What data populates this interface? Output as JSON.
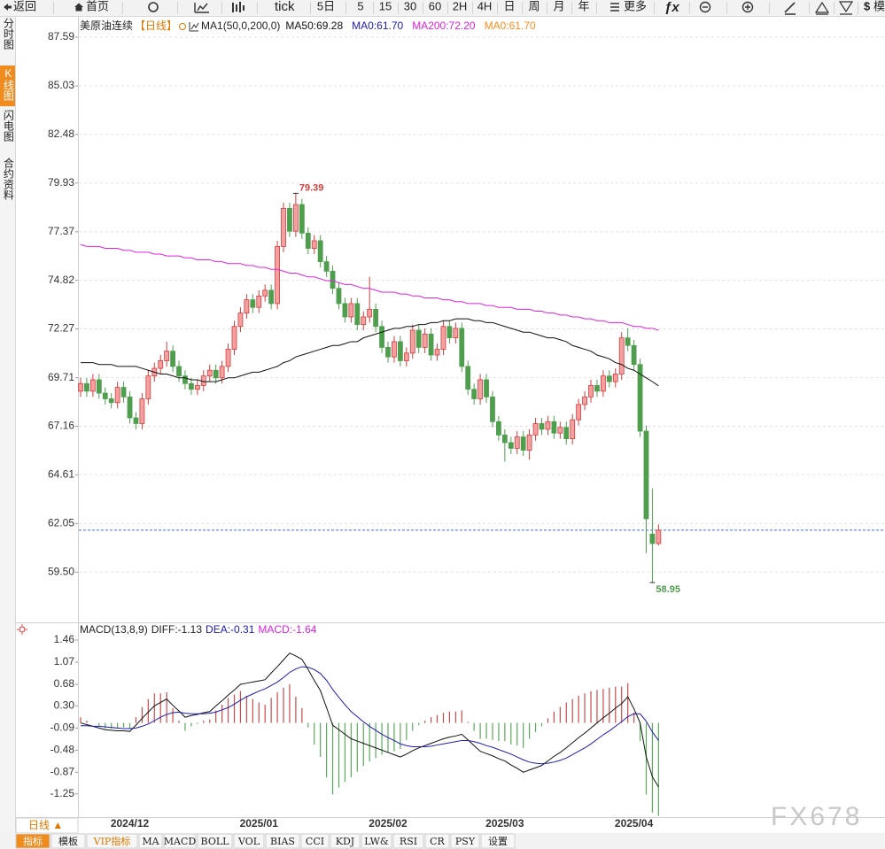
{
  "toolbar": {
    "back": "返回",
    "home": "首页",
    "tick": "tick",
    "periods": [
      "5日",
      "5",
      "15",
      "30",
      "60",
      "2H",
      "4H",
      "日",
      "周",
      "月",
      "年"
    ],
    "more": "更多",
    "fx": "ƒx",
    "currency": "$",
    "right": "模"
  },
  "sidebar": [
    "分时图",
    "K线图",
    "闪电图",
    "合约资料"
  ],
  "period_label": "日线 ▲",
  "tabs": [
    "指标",
    "模板",
    "VIP指标",
    "MA",
    "MACD",
    "BOLL",
    "VOL",
    "BIAS",
    "CCI",
    "KDJ",
    "LW&",
    "RSI",
    "CR",
    "PSY",
    "设置"
  ],
  "watermark": "FX678",
  "chart_data": [
    {
      "type": "candlestick",
      "title": "美原油连续",
      "subtitle": "【日线】",
      "indicator": "MA1(50,0,200,0)",
      "categories": [
        null,
        null,
        null,
        null,
        null,
        null,
        null,
        null,
        "2024/12",
        null,
        null,
        null,
        null,
        null,
        null,
        null,
        null,
        null,
        null,
        null,
        null,
        null,
        null,
        null,
        null,
        null,
        null,
        null,
        null,
        "2025/01",
        null,
        null,
        null,
        null,
        null,
        null,
        null,
        null,
        null,
        null,
        null,
        null,
        null,
        null,
        null,
        null,
        null,
        null,
        null,
        null,
        "2025/02",
        null,
        null,
        null,
        null,
        null,
        null,
        null,
        null,
        null,
        null,
        null,
        null,
        null,
        null,
        null,
        null,
        null,
        null,
        "2025/03",
        null,
        null,
        null,
        null,
        null,
        null,
        null,
        null,
        null,
        null,
        null,
        null,
        null,
        null,
        null,
        null,
        null,
        null,
        null,
        null,
        "2025/04",
        null,
        null,
        null,
        null
      ],
      "open": [
        69.0,
        69.4,
        69.0,
        69.6,
        68.9,
        68.6,
        68.4,
        69.2,
        68.7,
        67.6,
        67.3,
        68.6,
        69.8,
        70.2,
        70.6,
        71.1,
        70.3,
        69.8,
        69.4,
        69.1,
        69.3,
        69.8,
        70.1,
        69.7,
        70.3,
        71.2,
        72.4,
        73.1,
        73.8,
        73.4,
        74.0,
        74.3,
        73.6,
        76.6,
        78.6,
        77.4,
        78.8,
        77.3,
        76.5,
        76.9,
        75.8,
        75.3,
        74.4,
        73.6,
        72.9,
        73.6,
        72.5,
        72.9,
        73.3,
        72.4,
        71.3,
        70.8,
        71.6,
        70.6,
        71.0,
        72.2,
        71.3,
        72.0,
        70.9,
        71.2,
        72.4,
        71.8,
        72.3,
        70.3,
        69.1,
        68.6,
        69.6,
        68.7,
        67.4,
        66.7,
        66.3,
        66.0,
        66.6,
        65.9,
        66.7,
        67.3,
        67.0,
        67.4,
        66.8,
        67.1,
        66.5,
        67.5,
        68.3,
        68.7,
        69.3,
        69.0,
        69.8,
        69.5,
        69.9,
        71.8,
        71.4,
        70.4,
        66.9,
        61.5,
        61.0
      ],
      "high": [
        69.7,
        69.7,
        69.9,
        69.9,
        69.2,
        68.9,
        69.5,
        69.5,
        69.0,
        67.9,
        68.9,
        70.1,
        70.5,
        70.9,
        71.6,
        71.4,
        70.6,
        70.1,
        69.7,
        69.6,
        70.1,
        70.4,
        70.4,
        70.6,
        71.5,
        72.7,
        73.4,
        74.1,
        74.1,
        74.3,
        74.6,
        74.6,
        76.9,
        78.9,
        78.9,
        79.39,
        79.1,
        77.6,
        77.2,
        77.2,
        76.1,
        75.6,
        74.7,
        73.9,
        73.9,
        73.9,
        73.2,
        75.0,
        73.6,
        72.7,
        71.6,
        71.9,
        71.9,
        71.3,
        72.5,
        72.5,
        72.3,
        72.3,
        71.5,
        72.7,
        72.7,
        72.6,
        72.6,
        70.6,
        69.4,
        69.9,
        69.9,
        69.0,
        67.7,
        67.0,
        66.6,
        66.9,
        66.9,
        67.0,
        67.6,
        67.6,
        67.7,
        67.7,
        67.4,
        67.4,
        67.8,
        68.6,
        69.0,
        69.6,
        69.6,
        70.1,
        70.1,
        70.2,
        72.1,
        72.3,
        71.7,
        70.7,
        67.2,
        63.9,
        62.0
      ],
      "low": [
        68.7,
        68.7,
        68.7,
        68.6,
        68.3,
        68.1,
        68.1,
        68.4,
        67.3,
        67.0,
        67.0,
        68.3,
        69.5,
        69.9,
        70.3,
        70.0,
        69.5,
        69.1,
        68.8,
        68.8,
        69.0,
        69.5,
        69.4,
        69.4,
        70.0,
        70.9,
        72.1,
        72.8,
        73.1,
        73.1,
        73.7,
        73.3,
        73.3,
        76.3,
        77.1,
        77.1,
        77.0,
        76.2,
        76.2,
        75.5,
        75.0,
        74.1,
        73.3,
        72.6,
        72.6,
        72.2,
        72.2,
        72.6,
        72.1,
        71.0,
        70.5,
        70.5,
        70.3,
        70.3,
        70.7,
        71.0,
        71.0,
        70.6,
        70.6,
        70.9,
        71.5,
        71.5,
        70.0,
        68.8,
        68.3,
        68.3,
        68.4,
        67.1,
        66.4,
        65.3,
        65.7,
        65.7,
        65.6,
        65.4,
        66.4,
        66.7,
        66.7,
        66.5,
        66.5,
        66.2,
        66.2,
        67.2,
        68.0,
        68.4,
        68.7,
        68.7,
        69.2,
        69.2,
        69.6,
        71.1,
        70.1,
        66.6,
        60.5,
        58.95,
        60.9
      ],
      "close": [
        69.4,
        69.0,
        69.6,
        68.9,
        68.6,
        68.4,
        69.2,
        68.7,
        67.6,
        67.3,
        68.6,
        69.8,
        70.2,
        70.6,
        71.1,
        70.3,
        69.8,
        69.4,
        69.1,
        69.3,
        69.8,
        70.1,
        69.7,
        70.3,
        71.2,
        72.4,
        73.1,
        73.8,
        73.4,
        74.0,
        74.3,
        73.6,
        76.6,
        78.6,
        77.4,
        78.8,
        77.3,
        76.5,
        76.9,
        75.8,
        75.3,
        74.4,
        73.6,
        72.9,
        73.6,
        72.5,
        72.9,
        73.3,
        72.4,
        71.3,
        70.8,
        71.6,
        70.6,
        71.0,
        72.2,
        71.3,
        72.0,
        70.9,
        71.2,
        72.4,
        71.8,
        72.3,
        70.3,
        69.1,
        68.6,
        69.6,
        68.7,
        67.4,
        66.7,
        66.3,
        66.0,
        66.6,
        65.9,
        66.7,
        67.3,
        67.0,
        67.4,
        66.8,
        67.1,
        66.5,
        67.5,
        68.3,
        68.7,
        69.3,
        69.0,
        69.8,
        69.5,
        69.9,
        71.8,
        71.4,
        70.4,
        66.9,
        62.3,
        61.0,
        61.7
      ],
      "up_color": "#d23c3c",
      "down_color": "#4e9e4e",
      "series": [
        {
          "name": "MA50:69.28",
          "color": "#111111",
          "values": [
            70.5,
            70.5,
            70.5,
            70.4,
            70.4,
            70.4,
            70.3,
            70.3,
            70.3,
            70.3,
            70.2,
            70.1,
            70.0,
            69.9,
            69.9,
            69.8,
            69.7,
            69.7,
            69.6,
            69.6,
            69.5,
            69.5,
            69.5,
            69.6,
            69.7,
            69.7,
            69.8,
            69.9,
            70.0,
            70.0,
            70.1,
            70.2,
            70.3,
            70.5,
            70.6,
            70.8,
            70.9,
            71.0,
            71.1,
            71.2,
            71.3,
            71.4,
            71.4,
            71.5,
            71.6,
            71.6,
            71.8,
            71.9,
            72.0,
            72.1,
            72.2,
            72.3,
            72.3,
            72.4,
            72.4,
            72.5,
            72.5,
            72.6,
            72.6,
            72.7,
            72.7,
            72.8,
            72.8,
            72.8,
            72.7,
            72.7,
            72.6,
            72.6,
            72.5,
            72.4,
            72.3,
            72.2,
            72.1,
            72.1,
            72.0,
            71.9,
            71.8,
            71.8,
            71.7,
            71.6,
            71.4,
            71.3,
            71.2,
            71.1,
            70.9,
            70.8,
            70.7,
            70.5,
            70.4,
            70.2,
            70.1,
            69.9,
            69.7,
            69.5,
            69.28
          ]
        },
        {
          "name": "MA200:72.20",
          "color": "#e020e0",
          "values": [
            76.7,
            76.6,
            76.6,
            76.6,
            76.5,
            76.5,
            76.5,
            76.4,
            76.4,
            76.3,
            76.3,
            76.3,
            76.2,
            76.2,
            76.1,
            76.1,
            76.1,
            76.0,
            76.0,
            75.9,
            75.9,
            75.9,
            75.8,
            75.8,
            75.7,
            75.7,
            75.7,
            75.6,
            75.6,
            75.5,
            75.5,
            75.4,
            75.4,
            75.3,
            75.2,
            75.2,
            75.1,
            75.0,
            75.0,
            74.9,
            74.8,
            74.8,
            74.7,
            74.6,
            74.6,
            74.5,
            74.4,
            74.4,
            74.3,
            74.2,
            74.2,
            74.2,
            74.1,
            74.1,
            74.0,
            74.0,
            73.9,
            73.9,
            73.9,
            73.8,
            73.8,
            73.7,
            73.7,
            73.6,
            73.6,
            73.6,
            73.5,
            73.5,
            73.4,
            73.4,
            73.4,
            73.3,
            73.3,
            73.3,
            73.2,
            73.2,
            73.1,
            73.1,
            73.0,
            73.0,
            72.9,
            72.9,
            72.8,
            72.8,
            72.7,
            72.7,
            72.6,
            72.6,
            72.6,
            72.5,
            72.4,
            72.4,
            72.3,
            72.3,
            72.2
          ]
        }
      ],
      "extra_legend": [
        {
          "text": "MA0:61.70",
          "color": "#1c1cb4"
        },
        {
          "text": "MA0:61.70",
          "color": "#ff8c1a"
        }
      ],
      "price_line": 61.7,
      "price_line_color": "#3a6fd8",
      "ylim": [
        57.0,
        88.24
      ],
      "yticks": [
        {
          "value": 59.5,
          "label": "59.50"
        },
        62.05,
        64.61,
        67.16,
        69.71,
        72.27,
        74.82,
        77.37,
        79.93,
        82.48,
        85.03,
        87.59
      ],
      "grid": true
    },
    {
      "type": "macd",
      "title": "MACD(13,8,9)",
      "series": [
        {
          "name": "DIFF:-1.13",
          "color": "#111111",
          "values": [
            0.0,
            -0.03,
            -0.06,
            -0.09,
            -0.12,
            -0.13,
            -0.14,
            -0.14,
            -0.15,
            -0.04,
            0.08,
            0.19,
            0.3,
            0.36,
            0.42,
            0.31,
            0.21,
            0.1,
            0.13,
            0.15,
            0.18,
            0.2,
            0.3,
            0.39,
            0.49,
            0.58,
            0.68,
            0.7,
            0.72,
            0.74,
            0.76,
            0.88,
            0.99,
            1.11,
            1.23,
            1.18,
            1.12,
            0.94,
            0.75,
            0.57,
            0.27,
            -0.04,
            -0.12,
            -0.2,
            -0.28,
            -0.32,
            -0.36,
            -0.4,
            -0.44,
            -0.48,
            -0.52,
            -0.56,
            -0.6,
            -0.55,
            -0.49,
            -0.44,
            -0.4,
            -0.36,
            -0.32,
            -0.28,
            -0.25,
            -0.23,
            -0.2,
            -0.3,
            -0.4,
            -0.5,
            -0.54,
            -0.58,
            -0.63,
            -0.67,
            -0.74,
            -0.8,
            -0.87,
            -0.83,
            -0.79,
            -0.75,
            -0.67,
            -0.59,
            -0.52,
            -0.44,
            -0.35,
            -0.26,
            -0.18,
            -0.09,
            0.0,
            0.09,
            0.17,
            0.26,
            0.34,
            0.46,
            0.25,
            0.0,
            -0.6,
            -0.95,
            -1.13
          ]
        },
        {
          "name": "DEA:-0.31",
          "color": "#1c1cb4",
          "values": [
            -0.05,
            -0.05,
            -0.06,
            -0.06,
            -0.07,
            -0.08,
            -0.09,
            -0.1,
            -0.1,
            -0.09,
            -0.06,
            -0.02,
            0.04,
            0.1,
            0.15,
            0.18,
            0.19,
            0.17,
            0.16,
            0.16,
            0.16,
            0.17,
            0.19,
            0.23,
            0.27,
            0.33,
            0.4,
            0.46,
            0.51,
            0.56,
            0.6,
            0.66,
            0.72,
            0.8,
            0.89,
            0.95,
            0.99,
            0.98,
            0.94,
            0.87,
            0.75,
            0.59,
            0.45,
            0.32,
            0.2,
            0.11,
            0.02,
            -0.06,
            -0.13,
            -0.2,
            -0.26,
            -0.31,
            -0.37,
            -0.4,
            -0.42,
            -0.42,
            -0.42,
            -0.41,
            -0.39,
            -0.37,
            -0.35,
            -0.33,
            -0.31,
            -0.31,
            -0.33,
            -0.36,
            -0.4,
            -0.43,
            -0.47,
            -0.51,
            -0.55,
            -0.6,
            -0.65,
            -0.69,
            -0.71,
            -0.72,
            -0.71,
            -0.69,
            -0.66,
            -0.62,
            -0.56,
            -0.5,
            -0.44,
            -0.37,
            -0.29,
            -0.21,
            -0.14,
            -0.06,
            0.02,
            0.11,
            0.16,
            0.16,
            0.03,
            -0.16,
            -0.31
          ]
        }
      ],
      "histogram": {
        "name": "MACD:-1.64",
        "name_color": "#e020e0",
        "up_color": "#c84a4a",
        "down_color": "#5aa85a",
        "values": [
          0.1,
          0.04,
          0.0,
          -0.06,
          -0.1,
          -0.1,
          -0.1,
          -0.08,
          -0.1,
          0.1,
          0.28,
          0.42,
          0.52,
          0.52,
          0.54,
          0.26,
          0.04,
          -0.14,
          -0.06,
          -0.02,
          0.04,
          0.06,
          0.22,
          0.32,
          0.44,
          0.5,
          0.56,
          0.48,
          0.42,
          0.36,
          0.32,
          0.44,
          0.54,
          0.62,
          0.68,
          0.46,
          0.26,
          -0.08,
          -0.38,
          -0.6,
          -0.96,
          -1.26,
          -1.14,
          -1.04,
          -0.96,
          -0.86,
          -0.76,
          -0.68,
          -0.62,
          -0.56,
          -0.52,
          -0.5,
          -0.46,
          -0.3,
          -0.14,
          -0.04,
          0.04,
          0.1,
          0.14,
          0.18,
          0.2,
          0.2,
          0.22,
          0.02,
          -0.14,
          -0.28,
          -0.28,
          -0.3,
          -0.32,
          -0.32,
          -0.38,
          -0.4,
          -0.44,
          -0.28,
          -0.16,
          -0.06,
          0.08,
          0.2,
          0.28,
          0.36,
          0.42,
          0.48,
          0.52,
          0.56,
          0.58,
          0.6,
          0.62,
          0.64,
          0.64,
          0.7,
          0.18,
          -0.32,
          -1.26,
          -1.58,
          -1.64
        ]
      },
      "ylim": [
        -1.66,
        1.74
      ],
      "yticks": [
        -1.25,
        -0.87,
        -0.48,
        -0.09,
        {
          "value": 0.3,
          "label": "0.30"
        },
        0.68,
        1.07,
        1.46
      ],
      "grid": false
    }
  ]
}
